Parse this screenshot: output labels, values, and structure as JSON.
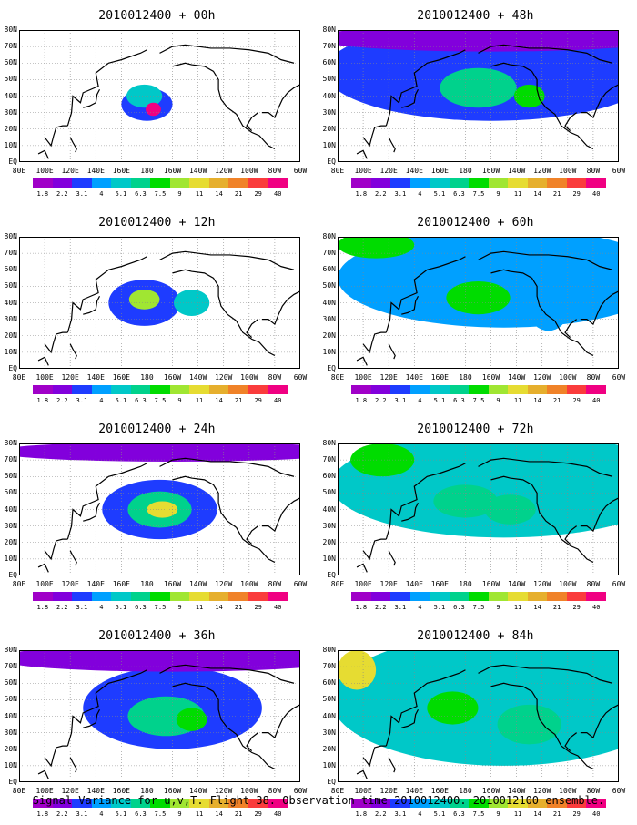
{
  "footer": "Signal Variance for u,v,T. Flight 38. Observation time 2010012400. 2010012100 ensemble.",
  "colorbar": {
    "labels": [
      "1.8",
      "2.2",
      "3.1",
      "4",
      "5.1",
      "6.3",
      "7.5",
      "9",
      "11",
      "14",
      "21",
      "29",
      "40"
    ],
    "colors": [
      "#a000c8",
      "#8200dc",
      "#1e3cff",
      "#00a0ff",
      "#00c8c8",
      "#00d28c",
      "#00dc00",
      "#a0e632",
      "#e6dc32",
      "#e6af2d",
      "#f08228",
      "#fa3c3c",
      "#f00082"
    ]
  },
  "map": {
    "lat_labels": [
      "80N",
      "70N",
      "60N",
      "50N",
      "40N",
      "30N",
      "20N",
      "10N",
      "EQ"
    ],
    "lon_labels": [
      "80E",
      "100E",
      "120E",
      "140E",
      "160E",
      "180",
      "160W",
      "140W",
      "120W",
      "100W",
      "80W",
      "60W"
    ]
  },
  "chart_data": {
    "type": "heatmap",
    "title": "Signal Variance for u,v,T. Flight 38. Observation time 2010012400. 2010012100 ensemble.",
    "levels": [
      1.8,
      2.2,
      3.1,
      4,
      5.1,
      6.3,
      7.5,
      9,
      11,
      14,
      21,
      29,
      40
    ],
    "panels": [
      {
        "title": "2010012400 + 00h",
        "lead_h": 0,
        "blobs": [
          {
            "lon": 180,
            "lat": 35,
            "rx": 20,
            "ry": 10,
            "level": 2
          },
          {
            "lon": 178,
            "lat": 40,
            "rx": 14,
            "ry": 7,
            "level": 4
          },
          {
            "lon": 185,
            "lat": 32,
            "rx": 6,
            "ry": 4,
            "level": 12
          }
        ]
      },
      {
        "title": "2010012400 + 12h",
        "lead_h": 12,
        "blobs": [
          {
            "lon": 178,
            "lat": 40,
            "rx": 28,
            "ry": 14,
            "level": 2
          },
          {
            "lon": 178,
            "lat": 42,
            "rx": 12,
            "ry": 6,
            "level": 7
          },
          {
            "lon": 215,
            "lat": 40,
            "rx": 14,
            "ry": 8,
            "level": 4
          }
        ]
      },
      {
        "title": "2010012400 + 24h",
        "lead_h": 24,
        "blobs": [
          {
            "lon": 190,
            "lat": 40,
            "rx": 45,
            "ry": 18,
            "level": 2
          },
          {
            "lon": 190,
            "lat": 40,
            "rx": 25,
            "ry": 11,
            "level": 5
          },
          {
            "lon": 192,
            "lat": 40,
            "rx": 12,
            "ry": 5,
            "level": 8
          },
          {
            "lon": 200,
            "lat": 75,
            "rx": 140,
            "ry": 6,
            "level": 1
          }
        ]
      },
      {
        "title": "2010012400 + 36h",
        "lead_h": 36,
        "blobs": [
          {
            "lon": 200,
            "lat": 45,
            "rx": 70,
            "ry": 25,
            "level": 2
          },
          {
            "lon": 195,
            "lat": 40,
            "rx": 30,
            "ry": 12,
            "level": 5
          },
          {
            "lon": 215,
            "lat": 38,
            "rx": 12,
            "ry": 7,
            "level": 6
          },
          {
            "lon": 200,
            "lat": 75,
            "rx": 140,
            "ry": 8,
            "level": 1
          }
        ]
      },
      {
        "title": "2010012400 + 48h",
        "lead_h": 48,
        "blobs": [
          {
            "lon": 200,
            "lat": 55,
            "rx": 130,
            "ry": 30,
            "level": 2
          },
          {
            "lon": 190,
            "lat": 45,
            "rx": 30,
            "ry": 12,
            "level": 5
          },
          {
            "lon": 230,
            "lat": 40,
            "rx": 12,
            "ry": 7,
            "level": 6
          },
          {
            "lon": 200,
            "lat": 75,
            "rx": 140,
            "ry": 8,
            "level": 1
          }
        ]
      },
      {
        "title": "2010012400 + 60h",
        "lead_h": 60,
        "blobs": [
          {
            "lon": 210,
            "lat": 55,
            "rx": 130,
            "ry": 30,
            "level": 3
          },
          {
            "lon": 190,
            "lat": 43,
            "rx": 25,
            "ry": 10,
            "level": 6
          },
          {
            "lon": 110,
            "lat": 75,
            "rx": 30,
            "ry": 8,
            "level": 6
          },
          {
            "lon": 245,
            "lat": 35,
            "rx": 15,
            "ry": 12,
            "level": 3
          }
        ]
      },
      {
        "title": "2010012400 + 72h",
        "lead_h": 72,
        "blobs": [
          {
            "lon": 210,
            "lat": 55,
            "rx": 135,
            "ry": 32,
            "level": 4
          },
          {
            "lon": 180,
            "lat": 45,
            "rx": 25,
            "ry": 10,
            "level": 5
          },
          {
            "lon": 215,
            "lat": 40,
            "rx": 20,
            "ry": 9,
            "level": 5
          },
          {
            "lon": 115,
            "lat": 70,
            "rx": 25,
            "ry": 10,
            "level": 6
          }
        ]
      },
      {
        "title": "2010012400 + 84h",
        "lead_h": 84,
        "blobs": [
          {
            "lon": 210,
            "lat": 50,
            "rx": 135,
            "ry": 40,
            "level": 4
          },
          {
            "lon": 95,
            "lat": 68,
            "rx": 15,
            "ry": 12,
            "level": 8
          },
          {
            "lon": 230,
            "lat": 35,
            "rx": 25,
            "ry": 12,
            "level": 5
          },
          {
            "lon": 170,
            "lat": 45,
            "rx": 20,
            "ry": 10,
            "level": 6
          }
        ]
      }
    ],
    "xlim": [
      80,
      300
    ],
    "ylim": [
      0,
      80
    ]
  }
}
